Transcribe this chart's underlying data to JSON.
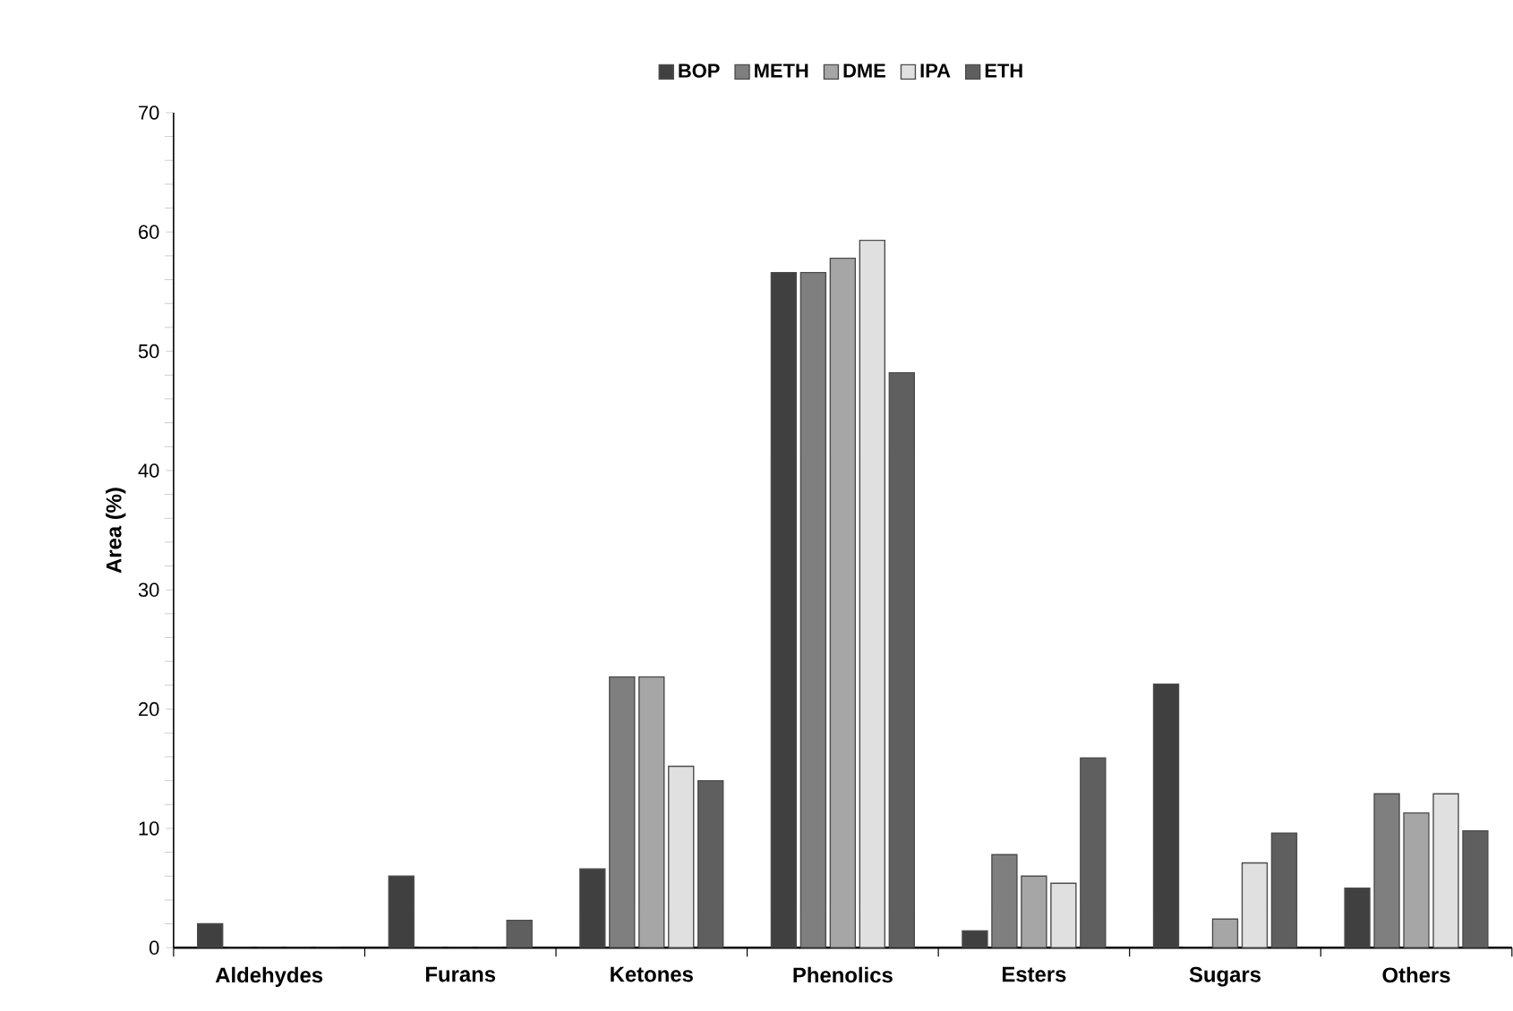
{
  "chart_data": {
    "type": "bar",
    "ylabel": "Area (%)",
    "categories": [
      "Aldehydes",
      "Furans",
      "Ketones",
      "Phenolics",
      "Esters",
      "Sugars",
      "Others"
    ],
    "series": [
      {
        "name": "BOP",
        "color": "#404040",
        "values": [
          2.0,
          6.0,
          6.6,
          56.6,
          1.4,
          22.1,
          5.0
        ]
      },
      {
        "name": "METH",
        "color": "#7f7f7f",
        "values": [
          0,
          0,
          22.7,
          56.6,
          7.8,
          0,
          12.9
        ]
      },
      {
        "name": "DME",
        "color": "#a6a6a6",
        "values": [
          0,
          0,
          22.7,
          57.8,
          6.0,
          2.4,
          11.3
        ]
      },
      {
        "name": "IPA",
        "color": "#e0e0e0",
        "values": [
          0,
          0,
          15.2,
          59.3,
          5.4,
          7.1,
          12.9
        ]
      },
      {
        "name": "ETH",
        "color": "#5f5f5f",
        "values": [
          0,
          2.3,
          14.0,
          48.2,
          15.9,
          9.6,
          9.8
        ]
      }
    ],
    "ylim": [
      0,
      70
    ],
    "yticks": [
      0,
      10,
      20,
      30,
      40,
      50,
      60,
      70
    ],
    "grid": false,
    "legend": "top"
  }
}
